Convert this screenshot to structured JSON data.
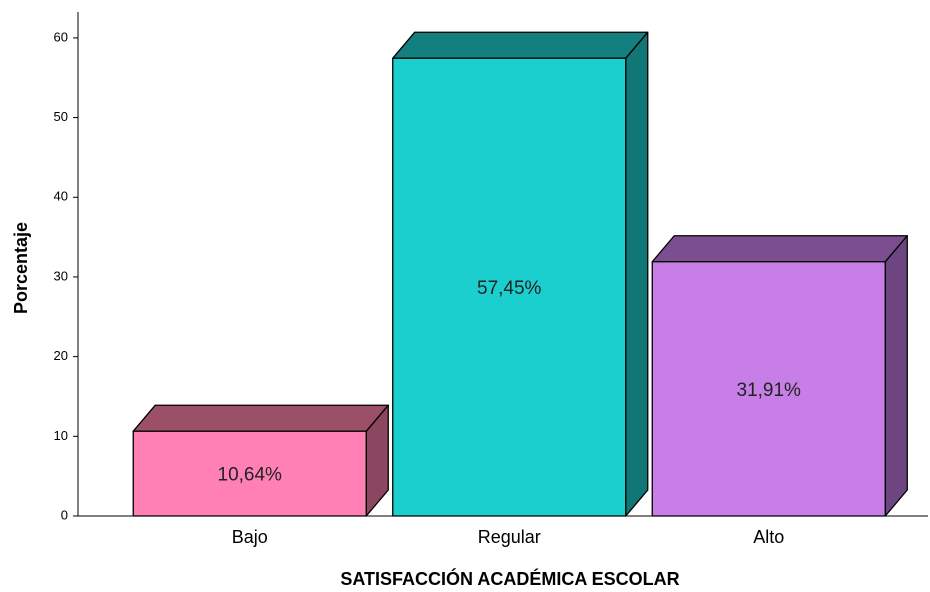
{
  "chart_data": {
    "type": "bar3d",
    "xlabel": "SATISFACCIÓN ACADÉMICA ESCOLAR",
    "ylabel": "Porcentaje",
    "categories": [
      "Bajo",
      "Regular",
      "Alto"
    ],
    "values": [
      10.64,
      57.45,
      31.91
    ],
    "value_labels": [
      "10,64%",
      "57,45%",
      "31,91%"
    ],
    "colors": [
      "#fe80b4",
      "#1ccfcf",
      "#c77ee6"
    ],
    "top_colors": [
      "#9b5068",
      "#137f7f",
      "#7b4f8f"
    ],
    "side_colors": [
      "#8b4660",
      "#117676",
      "#6d4580"
    ],
    "ylim": [
      0,
      63
    ],
    "yticks": [
      0,
      10,
      20,
      30,
      40,
      50,
      60
    ]
  }
}
